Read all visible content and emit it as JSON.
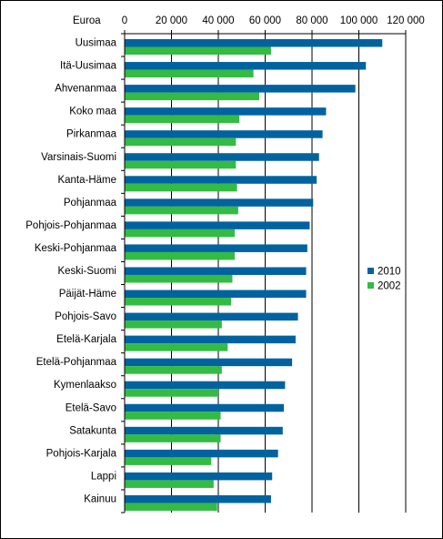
{
  "chart_data": {
    "type": "bar",
    "orientation": "horizontal",
    "title": "",
    "xlabel": "",
    "ylabel": "",
    "unit_label": "Euroa",
    "xlim": [
      0,
      120000
    ],
    "xticks": [
      "0",
      "20 000",
      "40 000",
      "60 000",
      "80 000",
      "100 000",
      "120 000"
    ],
    "grid": true,
    "legend_position": "right",
    "categories": [
      "Uusimaa",
      "Itä-Uusimaa",
      "Ahvenanmaa",
      "Koko maa",
      "Pirkanmaa",
      "Varsinais-Suomi",
      "Kanta-Häme",
      "Pohjanmaa",
      "Pohjois-Pohjanmaa",
      "Keski-Pohjanmaa",
      "Keski-Suomi",
      "Päijät-Häme",
      "Pohjois-Savo",
      "Etelä-Karjala",
      "Etelä-Pohjanmaa",
      "Kymenlaakso",
      "Etelä-Savo",
      "Satakunta",
      "Pohjois-Karjala",
      "Lappi",
      "Kainuu"
    ],
    "series": [
      {
        "name": "2010",
        "color": "#0063a0",
        "values": [
          110000,
          103000,
          98500,
          86000,
          84500,
          83000,
          82000,
          80500,
          79000,
          78000,
          77500,
          77500,
          74000,
          73000,
          71500,
          68500,
          68000,
          67500,
          65500,
          63000,
          62500
        ]
      },
      {
        "name": "2002",
        "color": "#33bb44",
        "values": [
          62500,
          55000,
          57500,
          49000,
          47500,
          47500,
          48000,
          48500,
          47000,
          47000,
          46000,
          45500,
          41500,
          44000,
          41500,
          40000,
          41000,
          41000,
          37000,
          38000,
          39500
        ]
      }
    ]
  }
}
